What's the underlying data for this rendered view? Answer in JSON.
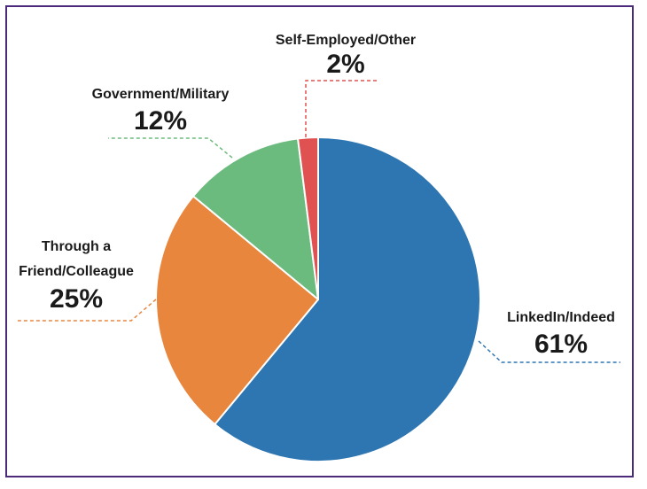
{
  "chart_data": {
    "type": "pie",
    "slices": [
      {
        "label": "LinkedIn/Indeed",
        "value": 61,
        "value_label": "61%",
        "color": "#2e76b2"
      },
      {
        "label": "Through a Friend/Colleague",
        "label_lines": [
          "Through a",
          "Friend/Colleague"
        ],
        "value": 25,
        "value_label": "25%",
        "color": "#e8863e"
      },
      {
        "label": "Government/Military",
        "value": 12,
        "value_label": "12%",
        "color": "#6cbb7e"
      },
      {
        "label": "Self-Employed/Other",
        "value": 2,
        "value_label": "2%",
        "color": "#e05252"
      }
    ]
  },
  "colors": {
    "border": "#4b2a7b"
  }
}
